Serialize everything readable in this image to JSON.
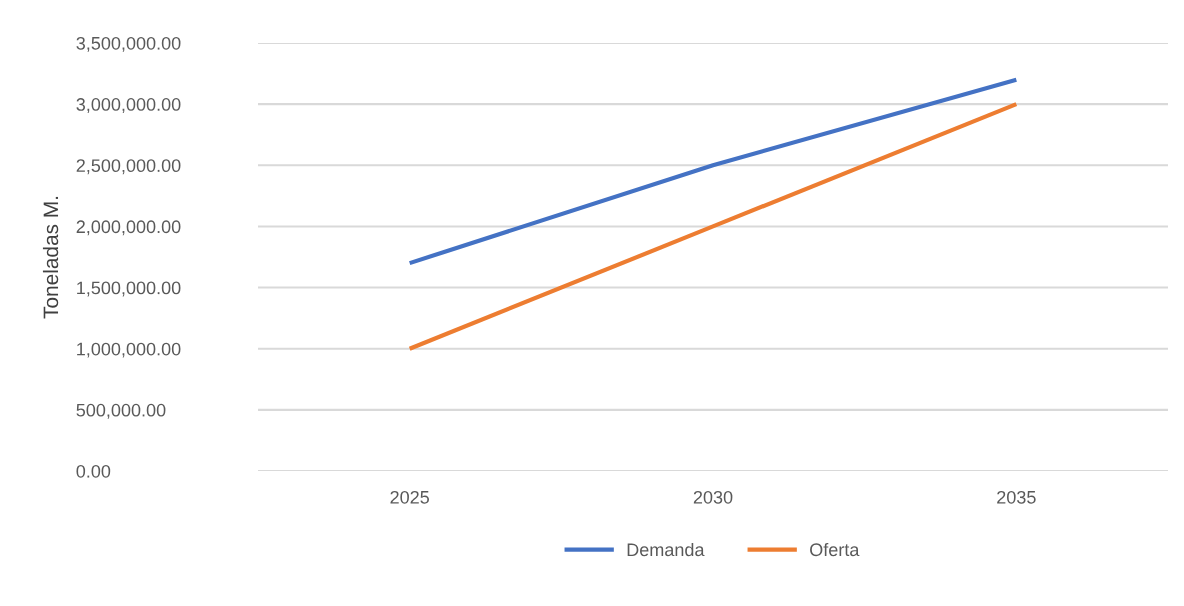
{
  "chart_data": {
    "type": "line",
    "ylabel": "Toneladas M.",
    "categories": [
      "2025",
      "2030",
      "2035"
    ],
    "series": [
      {
        "name": "Demanda",
        "color": "#4472c4",
        "values": [
          1700000,
          2500000,
          3200000
        ]
      },
      {
        "name": "Oferta",
        "color": "#ed7d31",
        "values": [
          1000000,
          2000000,
          3000000
        ]
      }
    ],
    "ylim": [
      0,
      3500000
    ],
    "yticks": [
      {
        "value": 0,
        "label": "0.00"
      },
      {
        "value": 500000,
        "label": "500,000.00"
      },
      {
        "value": 1000000,
        "label": "1,000,000.00"
      },
      {
        "value": 1500000,
        "label": "1,500,000.00"
      },
      {
        "value": 2000000,
        "label": "2,000,000.00"
      },
      {
        "value": 2500000,
        "label": "2,500,000.00"
      },
      {
        "value": 3000000,
        "label": "3,000,000.00"
      },
      {
        "value": 3500000,
        "label": "3,500,000.00"
      }
    ],
    "grid": "y",
    "legend": "bottom",
    "marker": "none",
    "line_style": "solid"
  }
}
